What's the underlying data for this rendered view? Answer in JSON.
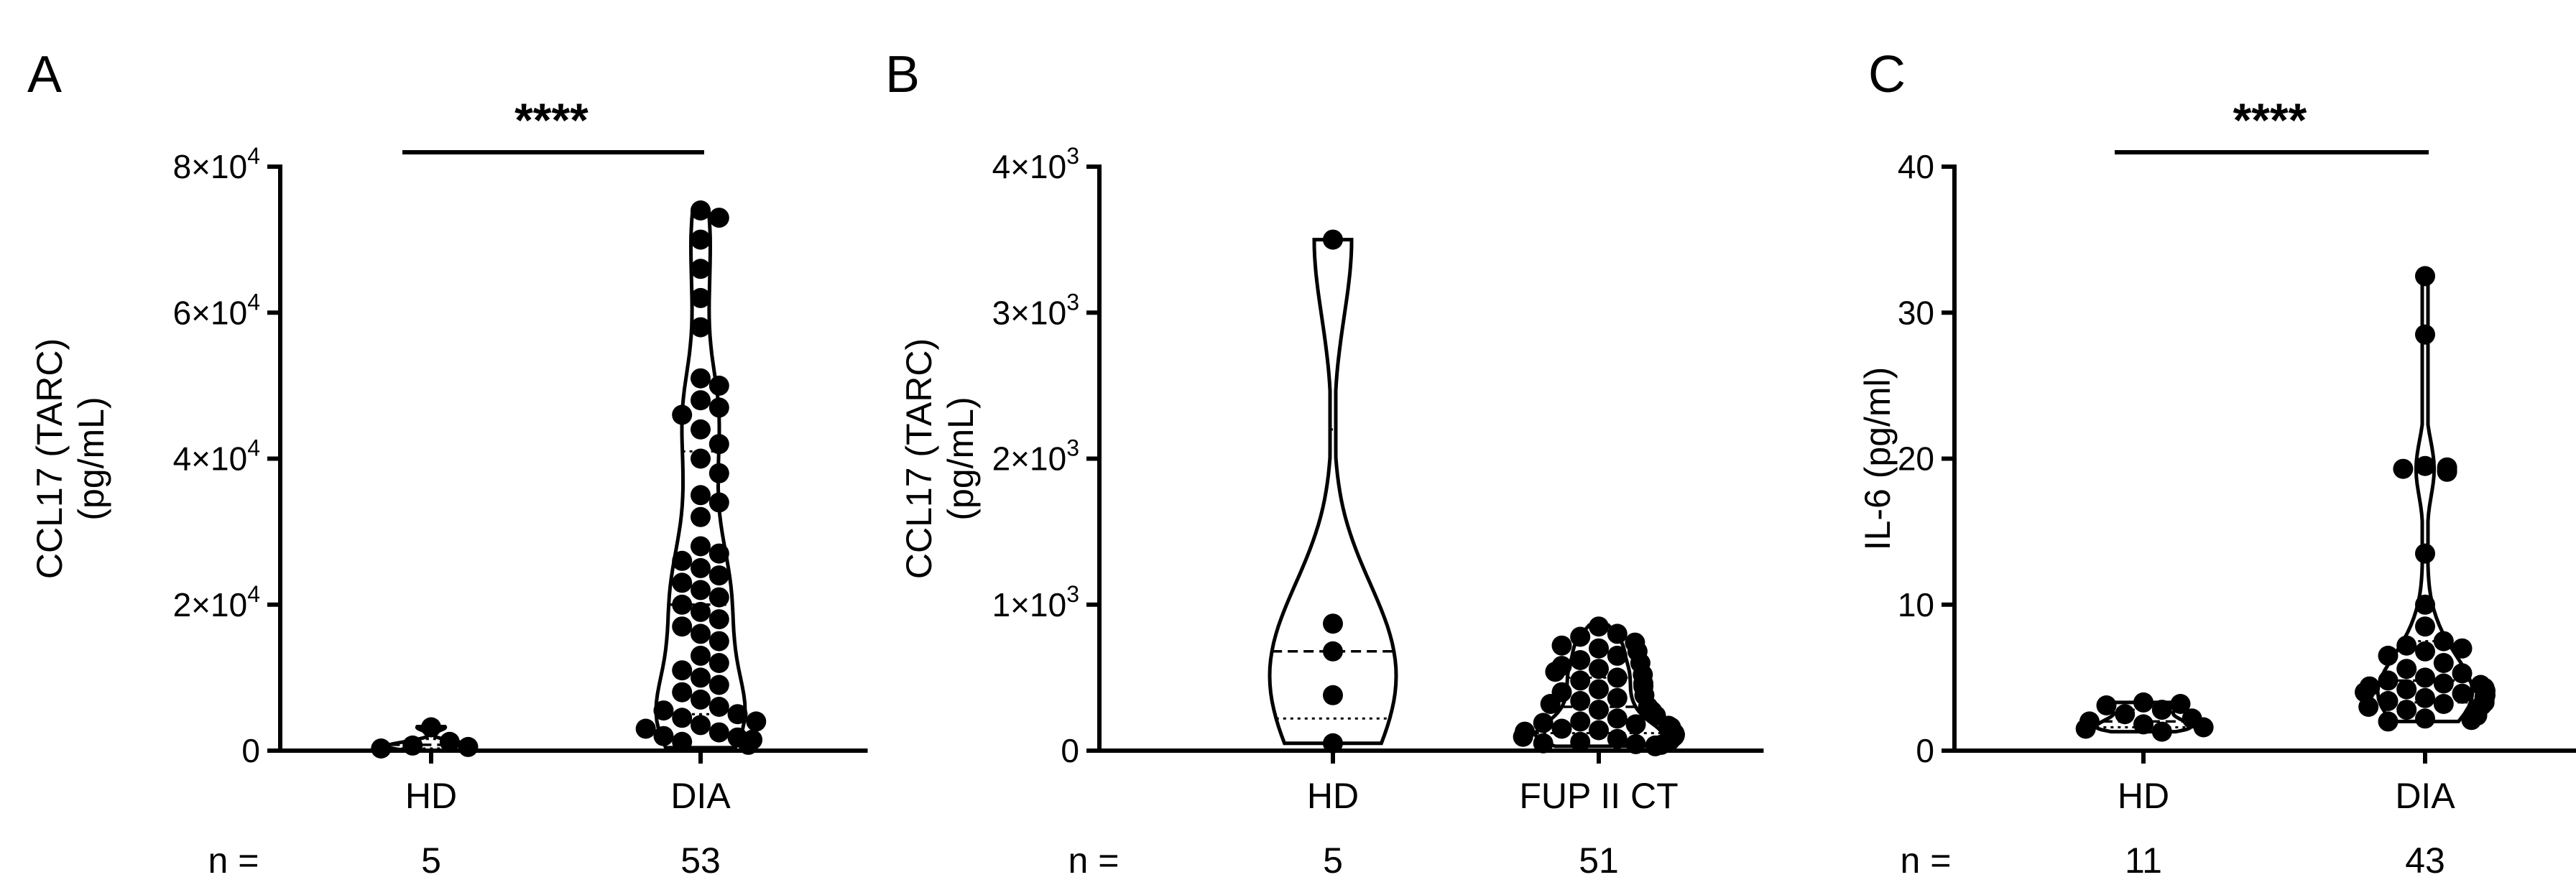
{
  "figure": {
    "n_prefix": "n ="
  },
  "chart_data": [
    {
      "panel": "A",
      "type": "violin",
      "ylabel_line1": "CCL17 (TARC)",
      "ylabel_line2": "(pg/mL)",
      "ylim": [
        0,
        80000
      ],
      "y_ticks": [
        {
          "value": 0,
          "base": "0",
          "exp": ""
        },
        {
          "value": 20000,
          "base": "2×10",
          "exp": "4"
        },
        {
          "value": 40000,
          "base": "4×10",
          "exp": "4"
        },
        {
          "value": 60000,
          "base": "6×10",
          "exp": "4"
        },
        {
          "value": 80000,
          "base": "8×10",
          "exp": "4"
        }
      ],
      "categories": [
        "HD",
        "DIA"
      ],
      "n": [
        "5",
        "53"
      ],
      "significance": "****",
      "series": [
        {
          "category": "HD",
          "min": 0,
          "max": 3300,
          "median": 800,
          "q1": 300,
          "q3": 1600,
          "points": [
            3200,
            1200,
            700,
            500,
            300
          ]
        },
        {
          "category": "DIA",
          "min": 400,
          "max": 74000,
          "median": 20000,
          "q1": 5000,
          "q3": 41000,
          "points": [
            74000,
            73000,
            70000,
            66000,
            62000,
            58000,
            51000,
            50000,
            48000,
            47000,
            46000,
            44000,
            42000,
            40000,
            38000,
            35000,
            34000,
            32000,
            28000,
            27000,
            26000,
            25000,
            24000,
            23000,
            22000,
            21000,
            20000,
            19000,
            18000,
            17000,
            16000,
            15000,
            13000,
            12000,
            11000,
            10000,
            9000,
            8000,
            7000,
            6000,
            5500,
            5000,
            4500,
            4000,
            3500,
            3000,
            2500,
            2000,
            1800,
            1500,
            1200,
            1000,
            800
          ]
        }
      ]
    },
    {
      "panel": "B",
      "type": "violin",
      "ylabel_line1": "CCL17 (TARC)",
      "ylabel_line2": "(pg/mL)",
      "ylim": [
        0,
        4000
      ],
      "y_ticks": [
        {
          "value": 0,
          "base": "0",
          "exp": ""
        },
        {
          "value": 1000,
          "base": "1×10",
          "exp": "3"
        },
        {
          "value": 2000,
          "base": "2×10",
          "exp": "3"
        },
        {
          "value": 3000,
          "base": "3×10",
          "exp": "3"
        },
        {
          "value": 4000,
          "base": "4×10",
          "exp": "3"
        }
      ],
      "categories": [
        "HD",
        "FUP II CT"
      ],
      "n": [
        "5",
        "51"
      ],
      "significance": "",
      "series": [
        {
          "category": "HD",
          "min": 50,
          "max": 3500,
          "median": 680,
          "q1": 220,
          "q3": 2200,
          "points": [
            3500,
            870,
            680,
            380,
            50
          ]
        },
        {
          "category": "FUP II CT",
          "min": 30,
          "max": 860,
          "median": 300,
          "q1": 120,
          "q3": 500,
          "points": [
            850,
            800,
            780,
            740,
            720,
            700,
            680,
            650,
            620,
            600,
            580,
            560,
            540,
            520,
            500,
            480,
            460,
            440,
            420,
            400,
            380,
            360,
            340,
            320,
            300,
            280,
            270,
            260,
            240,
            220,
            200,
            190,
            180,
            170,
            160,
            150,
            140,
            130,
            120,
            110,
            100,
            95,
            90,
            80,
            70,
            60,
            50,
            45,
            40,
            35,
            30
          ]
        }
      ]
    },
    {
      "panel": "C",
      "type": "violin",
      "ylabel_line1": "IL-6 (pg/ml)",
      "ylabel_line2": "",
      "ylim": [
        0,
        40
      ],
      "y_ticks": [
        {
          "value": 0,
          "base": "0",
          "exp": ""
        },
        {
          "value": 10,
          "base": "10",
          "exp": ""
        },
        {
          "value": 20,
          "base": "20",
          "exp": ""
        },
        {
          "value": 30,
          "base": "30",
          "exp": ""
        },
        {
          "value": 40,
          "base": "40",
          "exp": ""
        }
      ],
      "categories": [
        "HD",
        "DIA"
      ],
      "n": [
        "11",
        "43"
      ],
      "significance": "****",
      "series": [
        {
          "category": "HD",
          "min": 1.3,
          "max": 3.3,
          "median": 2.0,
          "q1": 1.6,
          "q3": 2.8,
          "points": [
            3.3,
            3.2,
            3.1,
            2.8,
            2.5,
            2.2,
            2.0,
            1.8,
            1.6,
            1.5,
            1.3
          ]
        },
        {
          "category": "DIA",
          "min": 2.0,
          "max": 32.5,
          "median": 4.8,
          "q1": 3.3,
          "q3": 7.5,
          "points": [
            32.5,
            28.5,
            19.5,
            19.4,
            19.3,
            19.2,
            19.1,
            13.5,
            10.0,
            8.5,
            7.5,
            7.2,
            7.0,
            6.8,
            6.5,
            6.0,
            5.6,
            5.3,
            5.0,
            4.8,
            4.6,
            4.5,
            4.4,
            4.3,
            4.2,
            4.1,
            4.0,
            3.9,
            3.8,
            3.7,
            3.6,
            3.5,
            3.4,
            3.3,
            3.2,
            3.1,
            3.0,
            2.8,
            2.6,
            2.4,
            2.2,
            2.1,
            2.0
          ]
        }
      ]
    }
  ]
}
